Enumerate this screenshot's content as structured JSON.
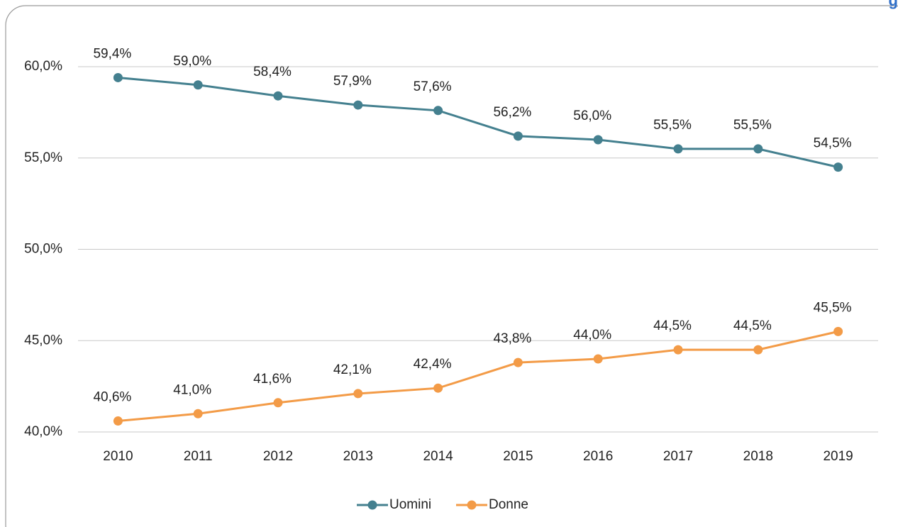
{
  "chart_data": {
    "type": "line",
    "title": "g",
    "categories": [
      "2010",
      "2011",
      "2012",
      "2013",
      "2014",
      "2015",
      "2016",
      "2017",
      "2018",
      "2019"
    ],
    "series": [
      {
        "name": "Uomini",
        "color": "#44808f",
        "values": [
          59.4,
          59.0,
          58.4,
          57.9,
          57.6,
          56.2,
          56.0,
          55.5,
          55.5,
          54.5
        ],
        "value_labels": [
          "59,4%",
          "59,0%",
          "58,4%",
          "57,9%",
          "57,6%",
          "56,2%",
          "56,0%",
          "55,5%",
          "55,5%",
          "54,5%"
        ]
      },
      {
        "name": "Donne",
        "color": "#f39b47",
        "values": [
          40.6,
          41.0,
          41.6,
          42.1,
          42.4,
          43.8,
          44.0,
          44.5,
          44.5,
          45.5
        ],
        "value_labels": [
          "40,6%",
          "41,0%",
          "41,6%",
          "42,1%",
          "42,4%",
          "43,8%",
          "44,0%",
          "44,5%",
          "44,5%",
          "45,5%"
        ]
      }
    ],
    "ylim": [
      40,
      60
    ],
    "yticks": [
      {
        "value": 40,
        "label": "40,0%"
      },
      {
        "value": 45,
        "label": "45,0%"
      },
      {
        "value": 50,
        "label": "50,0%"
      },
      {
        "value": 55,
        "label": "55,0%"
      },
      {
        "value": 60,
        "label": "60,0%"
      }
    ],
    "grid": true,
    "legend": "bottom"
  }
}
